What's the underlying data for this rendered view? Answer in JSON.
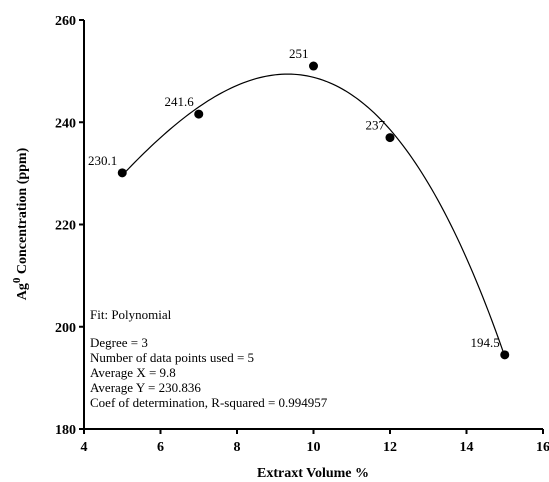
{
  "chart_data": {
    "type": "scatter",
    "xlabel": "Extraxt Volume %",
    "ylabel_main": "Ag",
    "ylabel_sup": "0",
    "ylabel_rest": " Concentration (ppm)",
    "xlim": [
      4,
      16
    ],
    "ylim": [
      180,
      260
    ],
    "x_ticks": [
      4,
      6,
      8,
      10,
      12,
      14,
      16
    ],
    "x_tick_labels": [
      "4",
      "6",
      "8",
      "10",
      "12",
      "14",
      "16"
    ],
    "y_ticks": [
      180,
      200,
      220,
      240,
      260
    ],
    "y_tick_labels": [
      "180",
      "200",
      "220",
      "240",
      "260"
    ],
    "grid": false,
    "points": [
      {
        "x": 5,
        "y": 230.1,
        "label": "230.1"
      },
      {
        "x": 7,
        "y": 241.6,
        "label": "241.6"
      },
      {
        "x": 10,
        "y": 251,
        "label": "251"
      },
      {
        "x": 12,
        "y": 237,
        "label": "237"
      },
      {
        "x": 15,
        "y": 194.5,
        "label": "194.5"
      }
    ],
    "fit_curve": {
      "type": "polynomial",
      "degree": 3
    },
    "fit_info": {
      "line1": "Fit: Polynomial",
      "line2": "Degree = 3",
      "line3": "Number of data points used = 5",
      "line4": "Average X = 9.8",
      "line5": "Average Y = 230.836",
      "line6": "Coef of determination, R-squared = 0.994957"
    }
  }
}
